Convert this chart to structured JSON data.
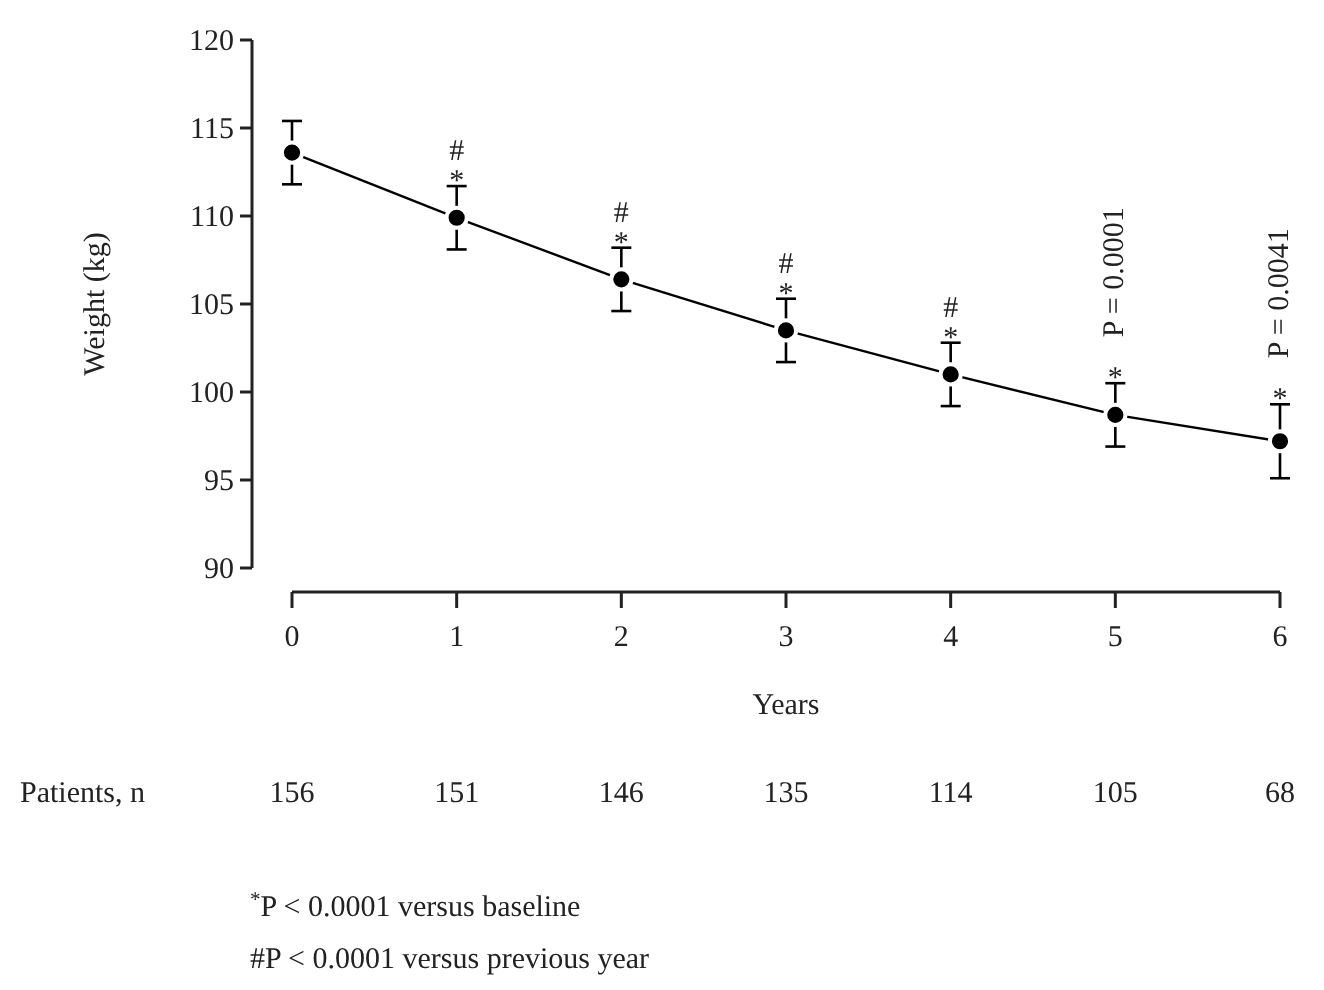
{
  "chart_data": {
    "type": "line",
    "xlabel": "Years",
    "ylabel": "Weight (kg)",
    "x": [
      0,
      1,
      2,
      3,
      4,
      5,
      6
    ],
    "values": [
      113.6,
      109.9,
      106.4,
      103.5,
      101.0,
      98.7,
      97.2
    ],
    "errors": [
      1.8,
      1.8,
      1.8,
      1.8,
      1.8,
      1.8,
      2.1
    ],
    "color": "#000000",
    "marker": "circle",
    "line_style": "solid",
    "grid": false,
    "xlim": [
      0,
      6
    ],
    "xticks": [
      0,
      1,
      2,
      3,
      4,
      5,
      6
    ],
    "ylim": [
      90,
      120
    ],
    "yticks": [
      90,
      95,
      100,
      105,
      110,
      115,
      120
    ],
    "annotations": [
      {
        "text": "*",
        "x": 1,
        "y": 109.9
      },
      {
        "text": "#",
        "x": 1,
        "y": 109.9
      },
      {
        "text": "*",
        "x": 2,
        "y": 106.4
      },
      {
        "text": "#",
        "x": 2,
        "y": 106.4
      },
      {
        "text": "*",
        "x": 3,
        "y": 103.5
      },
      {
        "text": "#",
        "x": 3,
        "y": 103.5
      },
      {
        "text": "*",
        "x": 4,
        "y": 101.0
      },
      {
        "text": "#",
        "x": 4,
        "y": 101.0
      },
      {
        "text": "*",
        "x": 5,
        "y": 98.7
      },
      {
        "text": "P = 0.0001",
        "x": 5,
        "y": 98.7
      },
      {
        "text": "*",
        "x": 6,
        "y": 97.2
      },
      {
        "text": "P = 0.0041",
        "x": 6,
        "y": 97.2
      },
      "Patients, n",
      "156",
      "151",
      "146",
      "135",
      "114",
      "105",
      "68",
      "$^{*}$P < 0.0001 versus baseline",
      "#P < 0.0001 versus previous year"
    ]
  }
}
